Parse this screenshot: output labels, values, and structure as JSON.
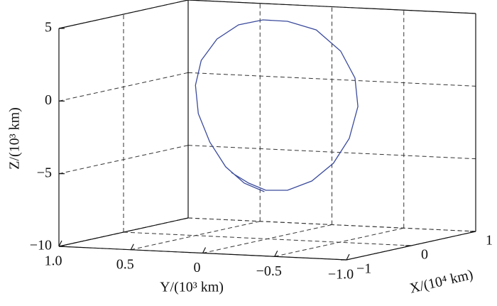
{
  "chart_data": {
    "type": "line3d",
    "xlabel": "X/(10⁴ km)",
    "ylabel": "Y/(10³ km)",
    "zlabel": "Z/(10³ km)",
    "xlim": [
      -1,
      1
    ],
    "ylim": [
      1,
      -1
    ],
    "zlim": [
      -10,
      5
    ],
    "xticks": [
      {
        "value": -1,
        "label": "−1"
      },
      0,
      1
    ],
    "yticks": [
      {
        "value": 1,
        "label": "1.0"
      },
      {
        "value": 0.5,
        "label": "0.5"
      },
      0,
      {
        "value": -0.5,
        "label": "−0.5"
      },
      {
        "value": -1,
        "label": "−1.0"
      }
    ],
    "zticks": [
      5,
      0,
      {
        "value": -5,
        "label": "−5"
      },
      {
        "value": -10,
        "label": "−10"
      }
    ],
    "grid": true,
    "series": [
      {
        "color": "#3b4b9c",
        "x": [
          0,
          0,
          0,
          0,
          0,
          0,
          0,
          0,
          0,
          0,
          0,
          0,
          0,
          0,
          0,
          0,
          0,
          0,
          0,
          0,
          0,
          0
        ],
        "y": [
          0.25,
          0.13,
          0.01,
          -0.14,
          -0.31,
          -0.46,
          -0.57,
          -0.63,
          -0.61,
          -0.51,
          -0.34,
          -0.14,
          0.03,
          0.2,
          0.35,
          0.46,
          0.5,
          0.48,
          0.4,
          0.29,
          0.16,
          0.02
        ],
        "z": [
          -5.55,
          -6.22,
          -6.66,
          -6.59,
          -5.87,
          -4.58,
          -2.82,
          -0.6,
          1.35,
          3.16,
          4.54,
          5.04,
          5.06,
          4.64,
          3.59,
          2.07,
          0.34,
          -1.6,
          -3.52,
          -5.17,
          -6.24,
          -6.76
        ]
      }
    ]
  }
}
